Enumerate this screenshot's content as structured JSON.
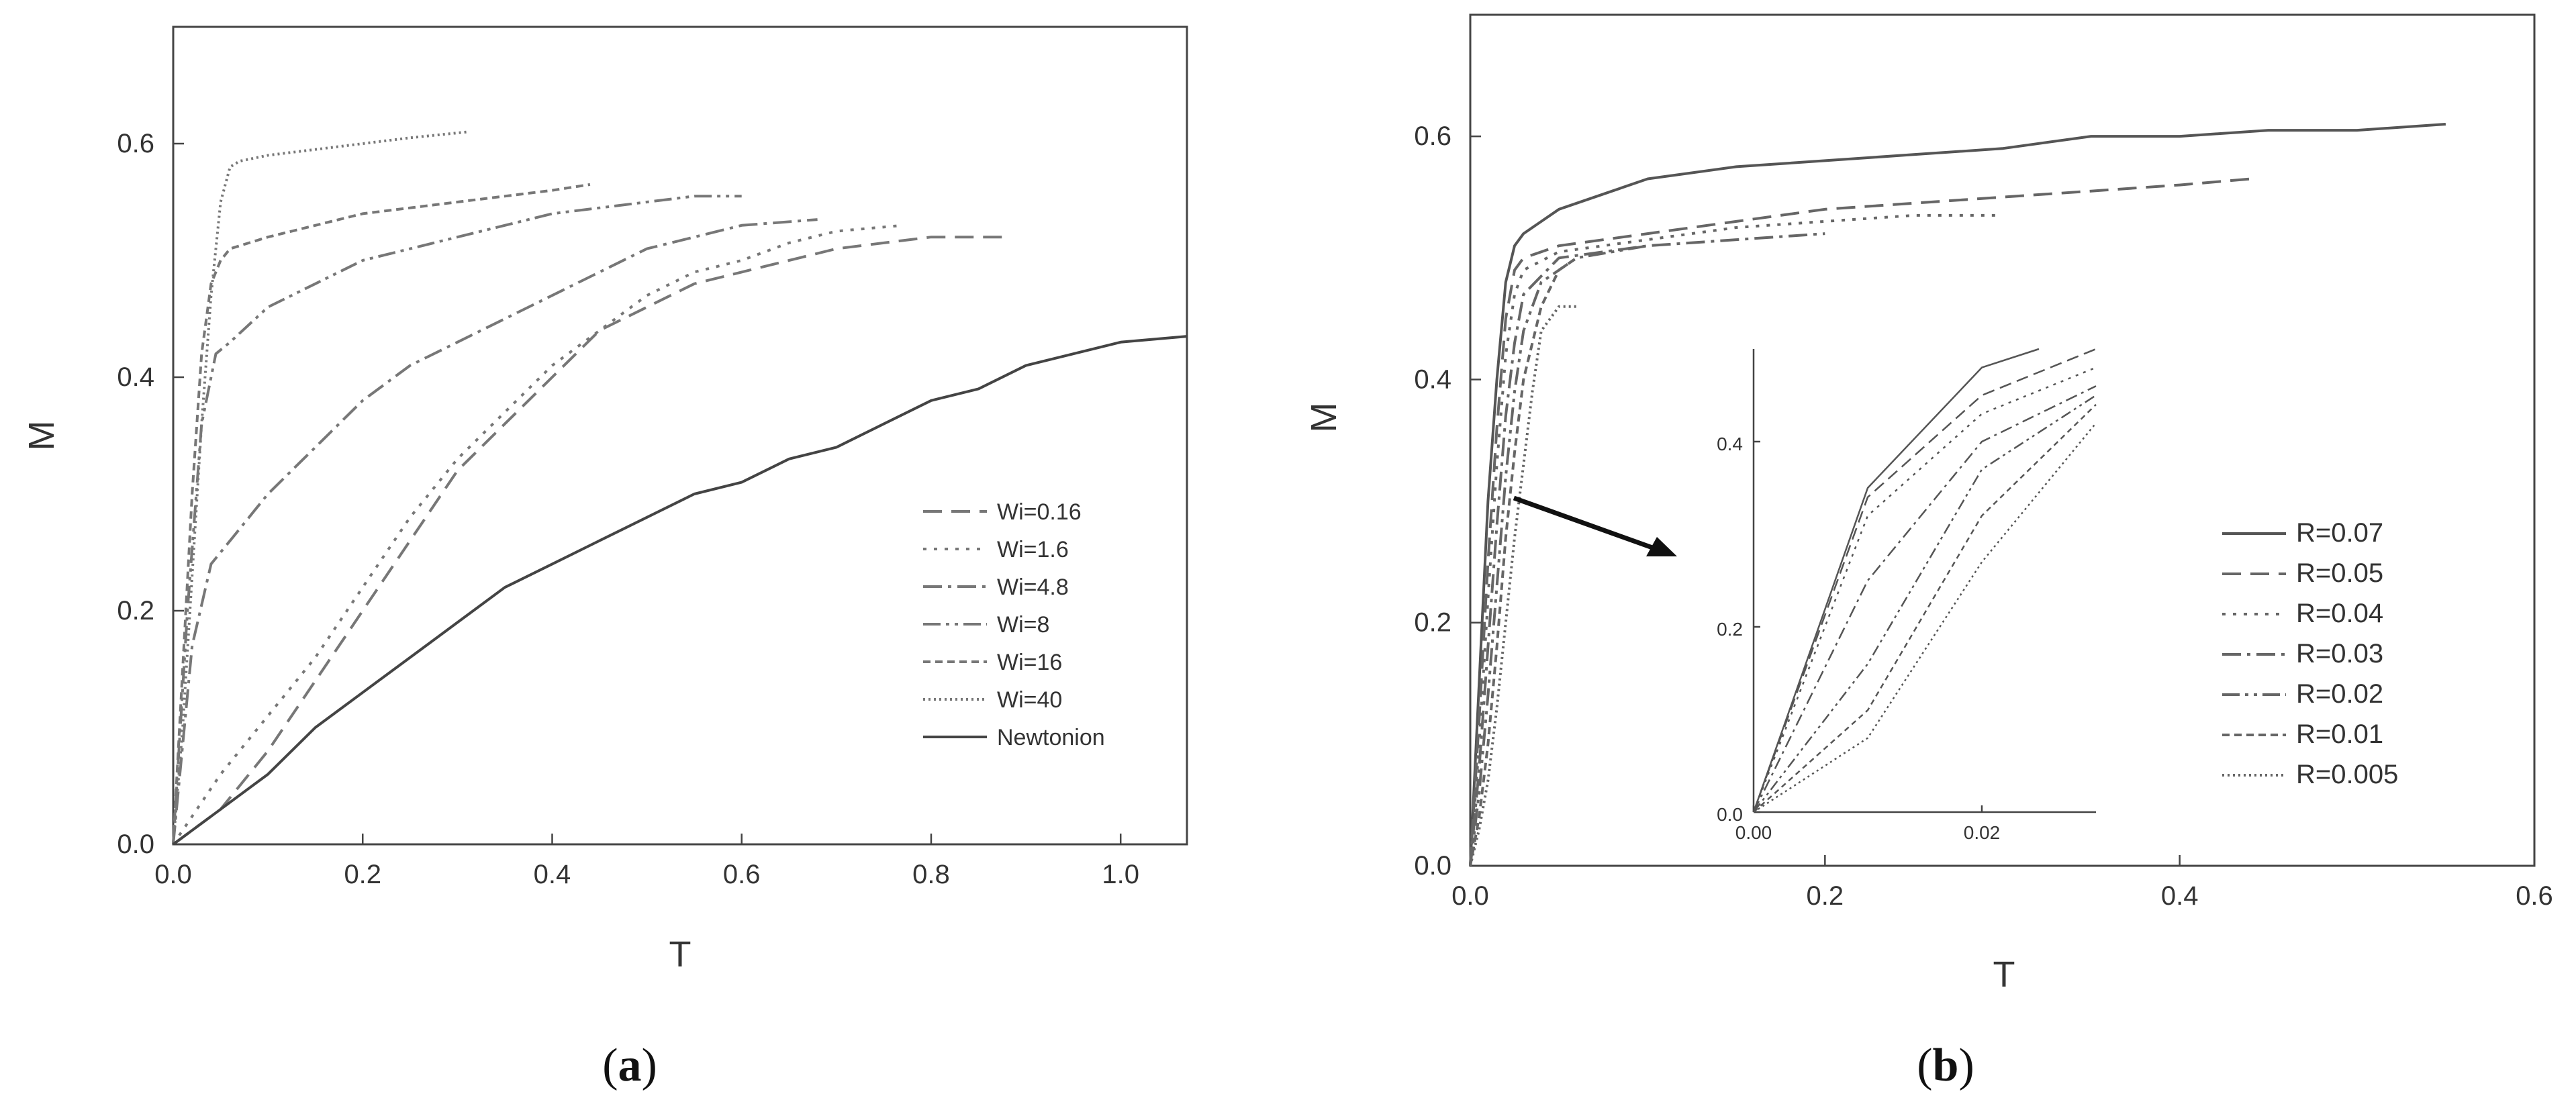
{
  "chart_data": [
    {
      "type": "line",
      "panel": "a",
      "caption": {
        "open": "(",
        "letter": "a",
        "close": ")"
      },
      "xlabel": "T",
      "ylabel": "M",
      "xlim": [
        0,
        1.07
      ],
      "ylim": [
        0,
        0.7
      ],
      "xticks": [
        "0.0",
        "0.2",
        "0.4",
        "0.6",
        "0.8",
        "1.0"
      ],
      "yticks": [
        "0.0",
        "0.2",
        "0.4",
        "0.6"
      ],
      "grid": false,
      "legend_position": "right",
      "series": [
        {
          "name": "Wi=0.16",
          "dash": "28 14",
          "color": "#777777",
          "x": [
            0,
            0.05,
            0.1,
            0.15,
            0.2,
            0.25,
            0.3,
            0.35,
            0.4,
            0.45,
            0.5,
            0.55,
            0.6,
            0.65,
            0.7,
            0.75,
            0.8,
            0.88
          ],
          "y": [
            0,
            0.03,
            0.08,
            0.14,
            0.2,
            0.26,
            0.32,
            0.36,
            0.4,
            0.44,
            0.46,
            0.48,
            0.49,
            0.5,
            0.51,
            0.515,
            0.52,
            0.52
          ]
        },
        {
          "name": "Wi=1.6",
          "dash": "5 11",
          "color": "#777777",
          "x": [
            0,
            0.05,
            0.1,
            0.15,
            0.2,
            0.25,
            0.3,
            0.35,
            0.4,
            0.45,
            0.5,
            0.55,
            0.6,
            0.65,
            0.7,
            0.77
          ],
          "y": [
            0,
            0.06,
            0.11,
            0.16,
            0.22,
            0.28,
            0.33,
            0.37,
            0.41,
            0.44,
            0.47,
            0.49,
            0.5,
            0.515,
            0.525,
            0.53
          ]
        },
        {
          "name": "Wi=4.8",
          "dash": "28 9 5 9",
          "color": "#777777",
          "x": [
            0,
            0.02,
            0.04,
            0.06,
            0.1,
            0.15,
            0.2,
            0.25,
            0.3,
            0.35,
            0.4,
            0.45,
            0.5,
            0.55,
            0.6,
            0.68
          ],
          "y": [
            0,
            0.17,
            0.24,
            0.26,
            0.3,
            0.34,
            0.38,
            0.41,
            0.43,
            0.45,
            0.47,
            0.49,
            0.51,
            0.52,
            0.53,
            0.535
          ]
        },
        {
          "name": "Wi=8",
          "dash": "26 8 5 8 5 8",
          "color": "#777777",
          "x": [
            0,
            0.015,
            0.03,
            0.045,
            0.06,
            0.1,
            0.15,
            0.2,
            0.25,
            0.3,
            0.35,
            0.4,
            0.45,
            0.5,
            0.55,
            0.6
          ],
          "y": [
            0,
            0.2,
            0.36,
            0.42,
            0.43,
            0.46,
            0.48,
            0.5,
            0.51,
            0.52,
            0.53,
            0.54,
            0.545,
            0.55,
            0.555,
            0.555
          ]
        },
        {
          "name": "Wi=16",
          "dash": "11 7",
          "color": "#777777",
          "x": [
            0,
            0.01,
            0.02,
            0.03,
            0.04,
            0.05,
            0.06,
            0.1,
            0.15,
            0.2,
            0.25,
            0.3,
            0.35,
            0.4,
            0.44
          ],
          "y": [
            0,
            0.15,
            0.3,
            0.42,
            0.48,
            0.5,
            0.51,
            0.52,
            0.53,
            0.54,
            0.545,
            0.55,
            0.555,
            0.56,
            0.565
          ]
        },
        {
          "name": "Wi=40",
          "dash": "3 5",
          "color": "#777777",
          "x": [
            0,
            0.01,
            0.02,
            0.03,
            0.04,
            0.05,
            0.06,
            0.07,
            0.1,
            0.15,
            0.2,
            0.25,
            0.31
          ],
          "y": [
            0,
            0.1,
            0.23,
            0.36,
            0.47,
            0.55,
            0.58,
            0.585,
            0.59,
            0.595,
            0.6,
            0.605,
            0.61
          ]
        },
        {
          "name": "Newtonion",
          "dash": "",
          "color": "#444444",
          "x": [
            0,
            0.05,
            0.1,
            0.15,
            0.2,
            0.25,
            0.3,
            0.35,
            0.4,
            0.45,
            0.5,
            0.55,
            0.6,
            0.65,
            0.7,
            0.75,
            0.8,
            0.85,
            0.9,
            0.95,
            1.0,
            1.07
          ],
          "y": [
            0,
            0.03,
            0.06,
            0.1,
            0.13,
            0.16,
            0.19,
            0.22,
            0.24,
            0.26,
            0.28,
            0.3,
            0.31,
            0.33,
            0.34,
            0.36,
            0.38,
            0.39,
            0.41,
            0.42,
            0.43,
            0.435
          ]
        }
      ]
    },
    {
      "type": "line",
      "panel": "b",
      "caption": {
        "open": "(",
        "letter": "b",
        "close": ")"
      },
      "xlabel": "T",
      "ylabel": "M",
      "xlim": [
        0,
        0.6
      ],
      "ylim": [
        0,
        0.7
      ],
      "xticks": [
        "0.0",
        "0.2",
        "0.4",
        "0.6"
      ],
      "yticks": [
        "0.0",
        "0.2",
        "0.4",
        "0.6"
      ],
      "grid": false,
      "legend_position": "right",
      "series": [
        {
          "name": "R=0.07",
          "dash": "",
          "color": "#555555",
          "x": [
            0,
            0.005,
            0.01,
            0.015,
            0.02,
            0.025,
            0.03,
            0.05,
            0.08,
            0.1,
            0.15,
            0.2,
            0.25,
            0.3,
            0.35,
            0.4,
            0.45,
            0.5,
            0.55
          ],
          "y": [
            0,
            0.15,
            0.3,
            0.4,
            0.48,
            0.51,
            0.52,
            0.54,
            0.555,
            0.565,
            0.575,
            0.58,
            0.585,
            0.59,
            0.6,
            0.6,
            0.605,
            0.605,
            0.61
          ]
        },
        {
          "name": "R=0.05",
          "dash": "28 14",
          "color": "#666666",
          "x": [
            0,
            0.005,
            0.01,
            0.015,
            0.02,
            0.025,
            0.03,
            0.05,
            0.1,
            0.15,
            0.2,
            0.25,
            0.3,
            0.35,
            0.4,
            0.44
          ],
          "y": [
            0,
            0.12,
            0.25,
            0.36,
            0.45,
            0.49,
            0.5,
            0.51,
            0.52,
            0.53,
            0.54,
            0.545,
            0.55,
            0.555,
            0.56,
            0.565
          ]
        },
        {
          "name": "R=0.04",
          "dash": "5 11",
          "color": "#666666",
          "x": [
            0,
            0.005,
            0.01,
            0.015,
            0.02,
            0.025,
            0.03,
            0.05,
            0.1,
            0.15,
            0.2,
            0.25,
            0.3
          ],
          "y": [
            0,
            0.1,
            0.22,
            0.33,
            0.42,
            0.47,
            0.49,
            0.505,
            0.515,
            0.525,
            0.53,
            0.535,
            0.535
          ]
        },
        {
          "name": "R=0.03",
          "dash": "28 9 5 9",
          "color": "#666666",
          "x": [
            0,
            0.005,
            0.01,
            0.015,
            0.02,
            0.025,
            0.03,
            0.05,
            0.1,
            0.15,
            0.2
          ],
          "y": [
            0,
            0.08,
            0.18,
            0.28,
            0.37,
            0.43,
            0.47,
            0.5,
            0.51,
            0.515,
            0.52
          ]
        },
        {
          "name": "R=0.02",
          "dash": "26 8 5 8 5 8",
          "color": "#666666",
          "x": [
            0,
            0.005,
            0.01,
            0.015,
            0.02,
            0.025,
            0.03,
            0.04,
            0.06,
            0.1
          ],
          "y": [
            0,
            0.06,
            0.14,
            0.23,
            0.32,
            0.39,
            0.44,
            0.48,
            0.5,
            0.51
          ]
        },
        {
          "name": "R=0.01",
          "dash": "11 7",
          "color": "#666666",
          "x": [
            0,
            0.005,
            0.01,
            0.015,
            0.02,
            0.025,
            0.03,
            0.04,
            0.05,
            0.06
          ],
          "y": [
            0,
            0.04,
            0.1,
            0.18,
            0.27,
            0.34,
            0.4,
            0.46,
            0.49,
            0.5
          ]
        },
        {
          "name": "R=0.005",
          "dash": "3 5",
          "color": "#666666",
          "x": [
            0,
            0.005,
            0.01,
            0.015,
            0.02,
            0.025,
            0.03,
            0.035,
            0.04,
            0.05,
            0.06
          ],
          "y": [
            0,
            0.03,
            0.07,
            0.13,
            0.2,
            0.27,
            0.33,
            0.39,
            0.44,
            0.46,
            0.46
          ]
        }
      ],
      "inset": {
        "xlim": [
          0,
          0.03
        ],
        "ylim": [
          0,
          0.5
        ],
        "xticks": [
          "0.00",
          "0.02"
        ],
        "yticks": [
          "0.0",
          "0.2",
          "0.4"
        ],
        "series": [
          {
            "name": "R=0.07",
            "dash": "",
            "x": [
              0,
              0.01,
              0.02,
              0.025
            ],
            "y": [
              0,
              0.35,
              0.48,
              0.5
            ]
          },
          {
            "name": "R=0.05",
            "dash": "18 9",
            "x": [
              0,
              0.01,
              0.02,
              0.03
            ],
            "y": [
              0,
              0.34,
              0.45,
              0.5
            ]
          },
          {
            "name": "R=0.04",
            "dash": "4 8",
            "x": [
              0,
              0.01,
              0.02,
              0.03
            ],
            "y": [
              0,
              0.32,
              0.43,
              0.48
            ]
          },
          {
            "name": "R=0.03",
            "dash": "18 7 4 7",
            "x": [
              0,
              0.01,
              0.02,
              0.03
            ],
            "y": [
              0,
              0.25,
              0.4,
              0.46
            ]
          },
          {
            "name": "R=0.02",
            "dash": "16 6 4 6 4 6",
            "x": [
              0,
              0.01,
              0.02,
              0.03
            ],
            "y": [
              0,
              0.16,
              0.37,
              0.45
            ]
          },
          {
            "name": "R=0.01",
            "dash": "8 6",
            "x": [
              0,
              0.01,
              0.02,
              0.03
            ],
            "y": [
              0,
              0.11,
              0.32,
              0.44
            ]
          },
          {
            "name": "R=0.005",
            "dash": "3 5",
            "x": [
              0,
              0.01,
              0.02,
              0.03
            ],
            "y": [
              0,
              0.08,
              0.27,
              0.42
            ]
          }
        ]
      }
    }
  ]
}
